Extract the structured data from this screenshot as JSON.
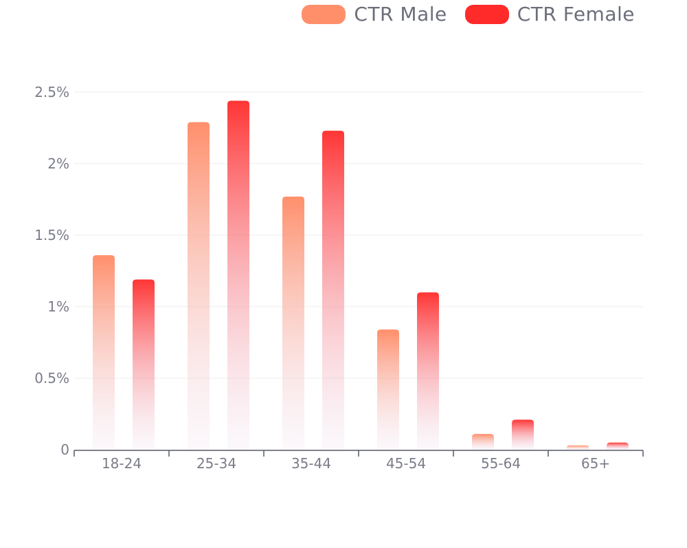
{
  "legend": {
    "male_label": "CTR Male",
    "female_label": "CTR Female"
  },
  "colors": {
    "male": "#ff8f6b",
    "female": "#ff2a2a",
    "grid": "#eeeeee",
    "axis": "#555866",
    "text": "#7a7c88"
  },
  "chart_data": {
    "type": "bar",
    "categories": [
      "18-24",
      "25-34",
      "35-44",
      "45-54",
      "55-64",
      "65+"
    ],
    "series": [
      {
        "name": "CTR Male",
        "values": [
          1.36,
          2.29,
          1.77,
          0.84,
          0.11,
          0.03
        ]
      },
      {
        "name": "CTR Female",
        "values": [
          1.19,
          2.44,
          2.23,
          1.1,
          0.21,
          0.05
        ]
      }
    ],
    "y_ticks": [
      {
        "value": 0,
        "label": "0"
      },
      {
        "value": 0.5,
        "label": "0.5%"
      },
      {
        "value": 1,
        "label": "1%"
      },
      {
        "value": 1.5,
        "label": "1.5%"
      },
      {
        "value": 2,
        "label": "2%"
      },
      {
        "value": 2.5,
        "label": "2.5%"
      }
    ],
    "ylim": [
      0,
      2.5
    ],
    "grid": true,
    "legend_position": "top-right"
  }
}
